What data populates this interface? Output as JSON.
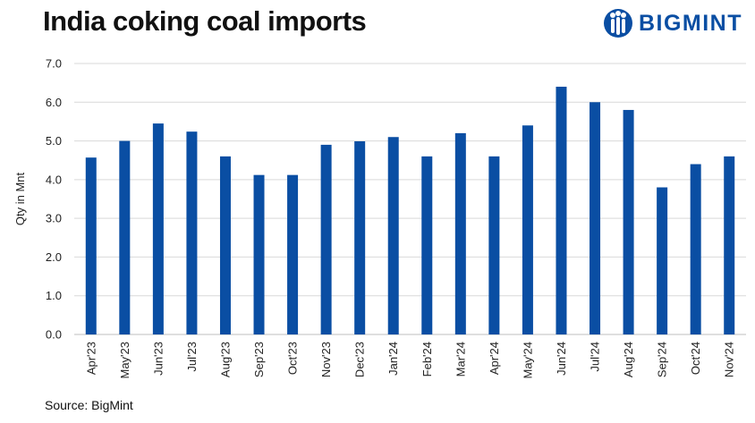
{
  "header": {
    "title": "India coking coal imports",
    "logo_text": "BIGMINT",
    "logo_icon": "bigmint-people-icon"
  },
  "footer": {
    "source": "Source: BigMint"
  },
  "colors": {
    "bar": "#0a4ea3",
    "grid": "#d9d9d9",
    "logo": "#0a4ea3"
  },
  "chart_data": {
    "type": "bar",
    "title": "India coking coal imports",
    "ylabel": "Qty in Mnt",
    "xlabel": "",
    "ylim": [
      0,
      7
    ],
    "yticks": [
      "0.0",
      "1.0",
      "2.0",
      "3.0",
      "4.0",
      "5.0",
      "6.0",
      "7.0"
    ],
    "grid": true,
    "categories": [
      "Apr'23",
      "May'23",
      "Jun'23",
      "Jul'23",
      "Aug'23",
      "Sep'23",
      "Oct'23",
      "Nov'23",
      "Dec'23",
      "Jan'24",
      "Feb'24",
      "Mar'24",
      "Apr'24",
      "May'24",
      "Jun'24",
      "Jul'24",
      "Aug'24",
      "Sep'24",
      "Oct'24",
      "Nov'24"
    ],
    "values": [
      4.57,
      5.0,
      5.45,
      5.24,
      4.6,
      4.12,
      4.12,
      4.9,
      4.99,
      5.1,
      4.6,
      5.2,
      4.6,
      5.4,
      6.4,
      6.0,
      5.8,
      3.8,
      4.4,
      4.6
    ]
  }
}
